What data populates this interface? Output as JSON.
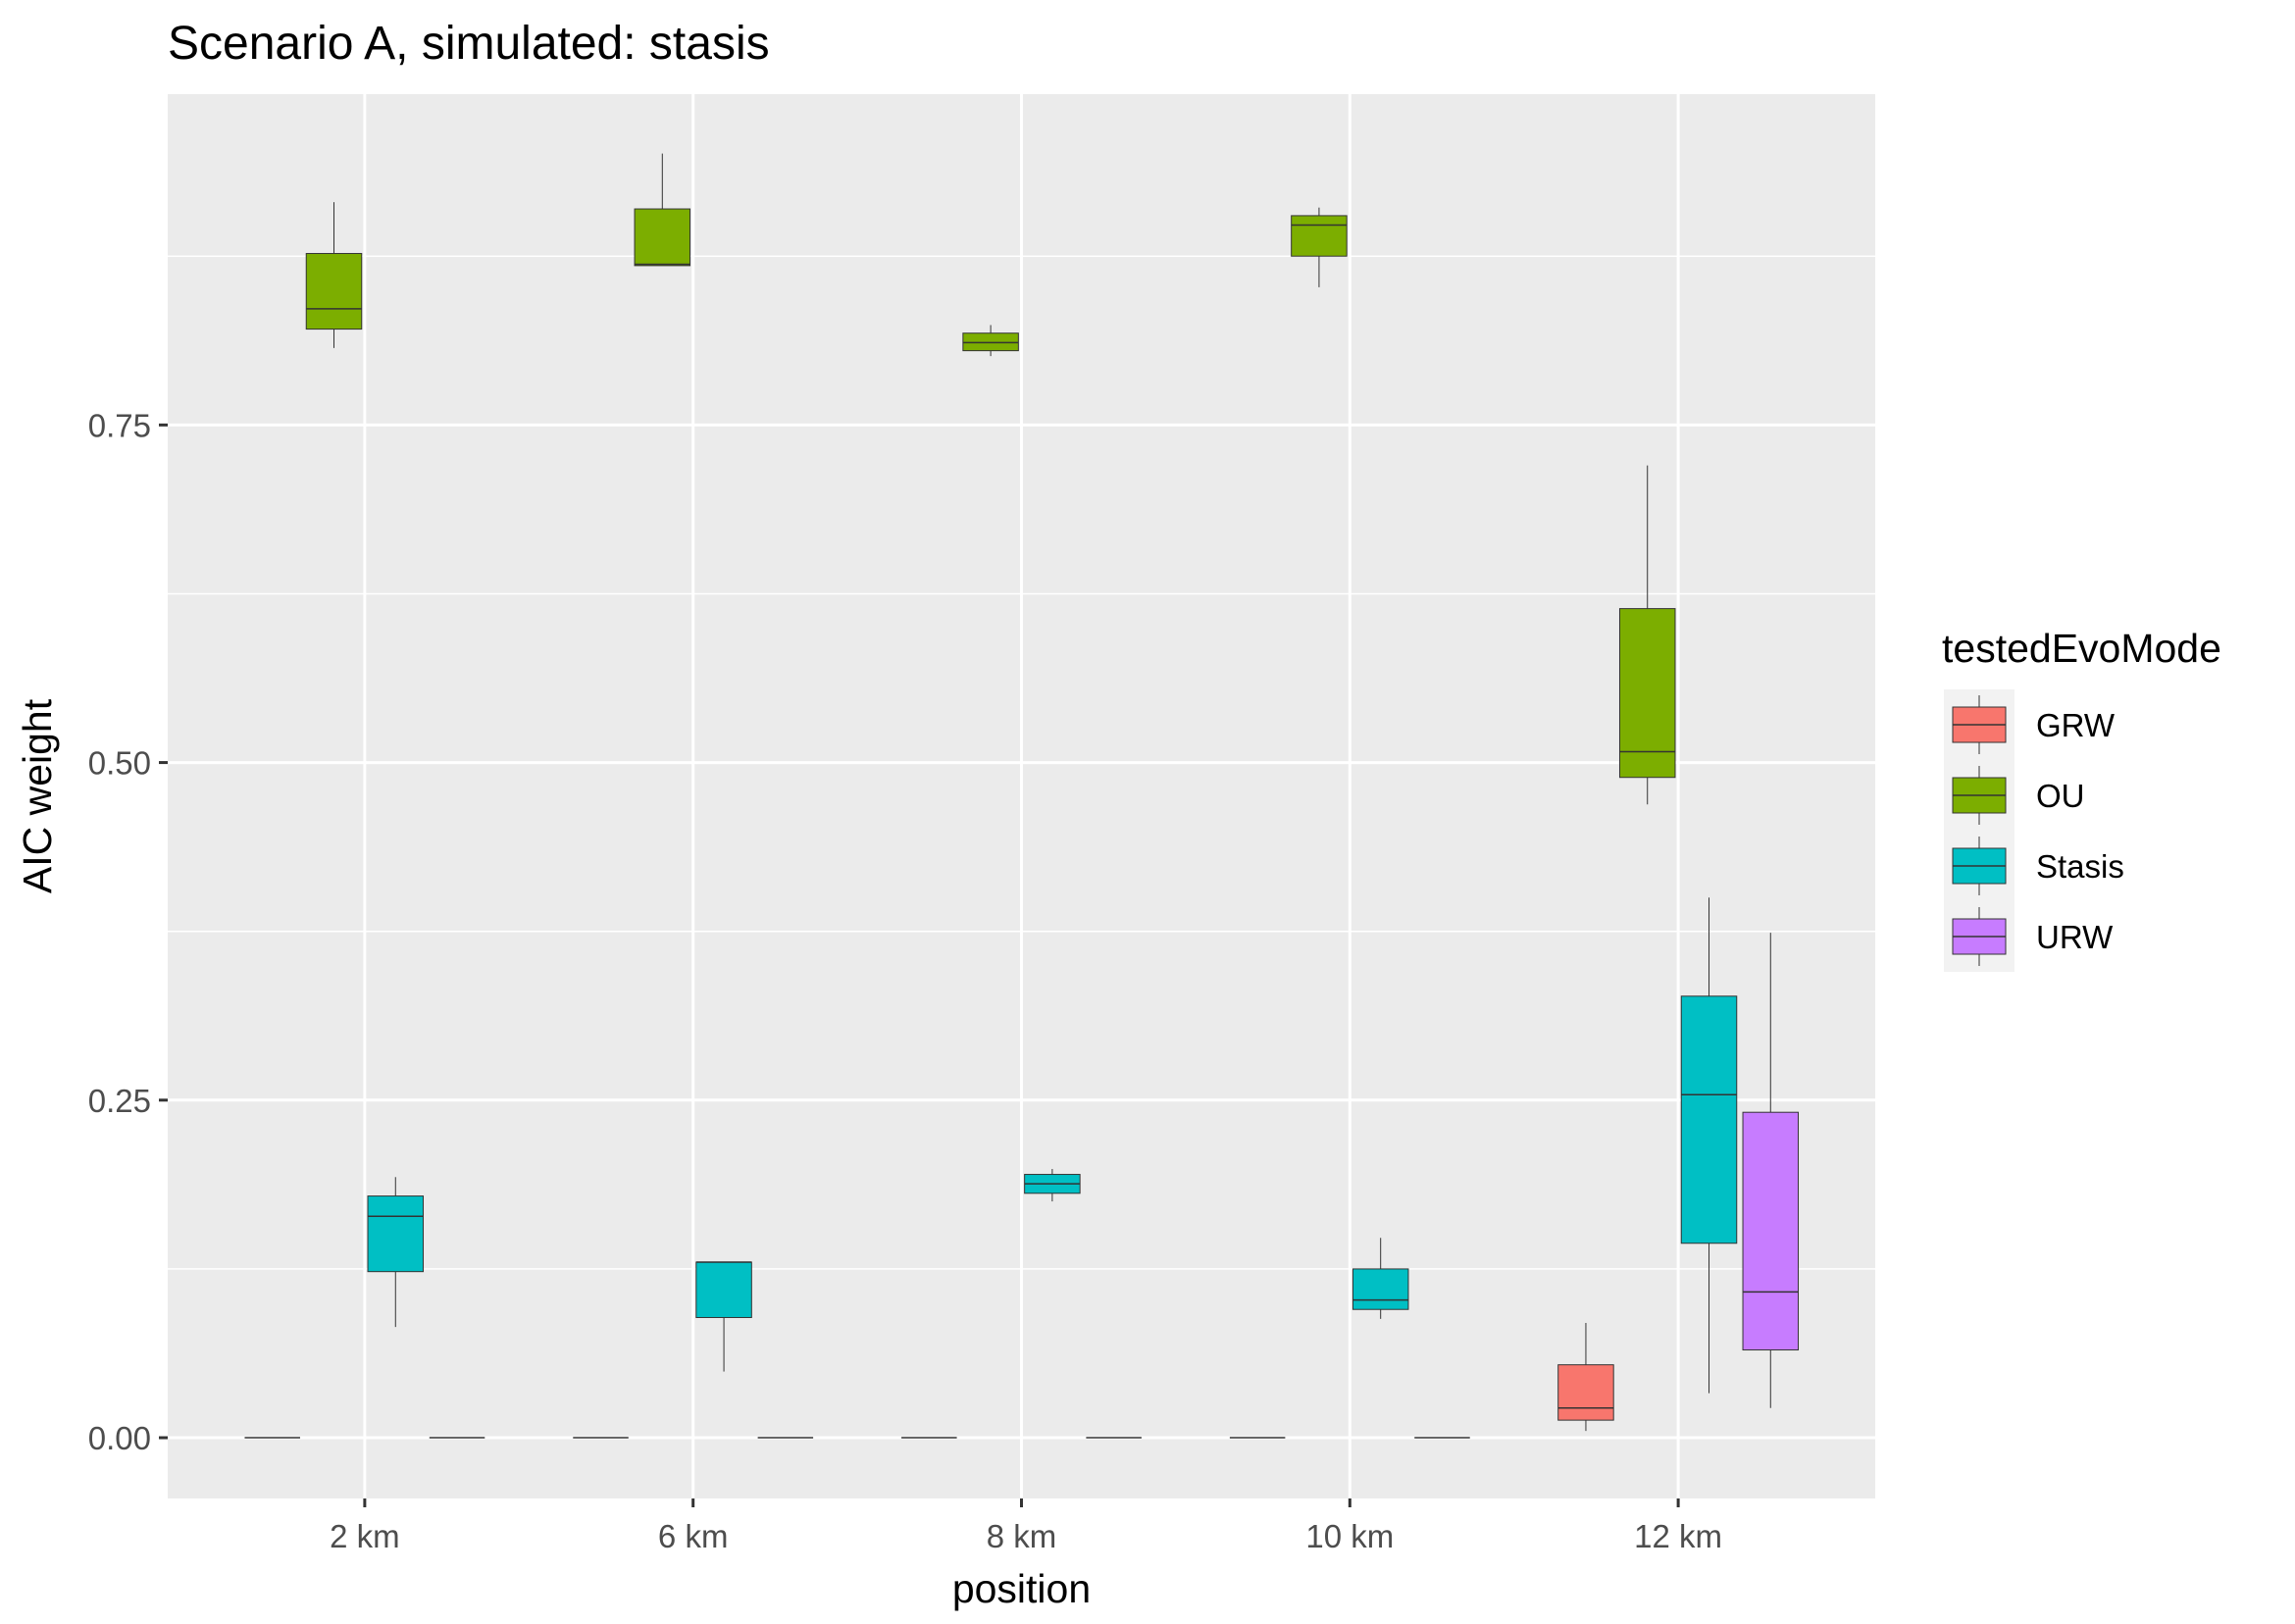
{
  "chart_data": {
    "type": "boxplot",
    "title": "Scenario A, simulated: stasis",
    "xlabel": "position",
    "ylabel": "AIC weight",
    "categories": [
      "2 km",
      "6 km",
      "8 km",
      "10 km",
      "12 km"
    ],
    "ylim": [
      -0.045,
      0.995
    ],
    "yticks": [
      0.0,
      0.25,
      0.5,
      0.75
    ],
    "ytick_labels": [
      "0.00",
      "0.25",
      "0.50",
      "0.75"
    ],
    "legend": {
      "title": "testedEvoMode",
      "placement": "right",
      "entries": [
        "GRW",
        "OU",
        "Stasis",
        "URW"
      ]
    },
    "colors": {
      "GRW": "#F8766D",
      "OU": "#7CAE00",
      "Stasis": "#00BFC4",
      "URW": "#C77CFF",
      "panel": "#EBEBEB",
      "grid": "#FFFFFF"
    },
    "series": [
      {
        "name": "GRW",
        "boxes": [
          {
            "category": "2 km",
            "whisker_low": 0.0,
            "q1": 0.0,
            "median": 0.0,
            "q3": 0.0,
            "whisker_high": 0.0
          },
          {
            "category": "6 km",
            "whisker_low": 0.0,
            "q1": 0.0,
            "median": 0.0,
            "q3": 0.0,
            "whisker_high": 0.0
          },
          {
            "category": "8 km",
            "whisker_low": 0.0,
            "q1": 0.0,
            "median": 0.0,
            "q3": 0.0,
            "whisker_high": 0.0
          },
          {
            "category": "10 km",
            "whisker_low": 0.0,
            "q1": 0.0,
            "median": 0.0,
            "q3": 0.0,
            "whisker_high": 0.0
          },
          {
            "category": "12 km",
            "whisker_low": 0.005,
            "q1": 0.013,
            "median": 0.022,
            "q3": 0.054,
            "whisker_high": 0.085
          }
        ]
      },
      {
        "name": "OU",
        "boxes": [
          {
            "category": "2 km",
            "whisker_low": 0.807,
            "q1": 0.821,
            "median": 0.836,
            "q3": 0.877,
            "whisker_high": 0.915
          },
          {
            "category": "6 km",
            "whisker_low": 0.868,
            "q1": 0.868,
            "median": 0.869,
            "q3": 0.91,
            "whisker_high": 0.951
          },
          {
            "category": "8 km",
            "whisker_low": 0.801,
            "q1": 0.805,
            "median": 0.811,
            "q3": 0.818,
            "whisker_high": 0.824
          },
          {
            "category": "10 km",
            "whisker_low": 0.852,
            "q1": 0.875,
            "median": 0.898,
            "q3": 0.905,
            "whisker_high": 0.911
          },
          {
            "category": "12 km",
            "whisker_low": 0.469,
            "q1": 0.489,
            "median": 0.508,
            "q3": 0.614,
            "whisker_high": 0.72
          }
        ]
      },
      {
        "name": "Stasis",
        "boxes": [
          {
            "category": "2 km",
            "whisker_low": 0.082,
            "q1": 0.123,
            "median": 0.164,
            "q3": 0.179,
            "whisker_high": 0.193
          },
          {
            "category": "6 km",
            "whisker_low": 0.049,
            "q1": 0.089,
            "median": 0.13,
            "q3": 0.13,
            "whisker_high": 0.13
          },
          {
            "category": "8 km",
            "whisker_low": 0.175,
            "q1": 0.181,
            "median": 0.188,
            "q3": 0.195,
            "whisker_high": 0.199
          },
          {
            "category": "10 km",
            "whisker_low": 0.088,
            "q1": 0.095,
            "median": 0.102,
            "q3": 0.125,
            "whisker_high": 0.148
          },
          {
            "category": "12 km",
            "whisker_low": 0.033,
            "q1": 0.144,
            "median": 0.254,
            "q3": 0.327,
            "whisker_high": 0.4
          }
        ]
      },
      {
        "name": "URW",
        "boxes": [
          {
            "category": "2 km",
            "whisker_low": 0.0,
            "q1": 0.0,
            "median": 0.0,
            "q3": 0.0,
            "whisker_high": 0.0
          },
          {
            "category": "6 km",
            "whisker_low": 0.0,
            "q1": 0.0,
            "median": 0.0,
            "q3": 0.0,
            "whisker_high": 0.0
          },
          {
            "category": "8 km",
            "whisker_low": 0.0,
            "q1": 0.0,
            "median": 0.0,
            "q3": 0.0,
            "whisker_high": 0.0
          },
          {
            "category": "10 km",
            "whisker_low": 0.0,
            "q1": 0.0,
            "median": 0.0,
            "q3": 0.0,
            "whisker_high": 0.0
          },
          {
            "category": "12 km",
            "whisker_low": 0.022,
            "q1": 0.065,
            "median": 0.108,
            "q3": 0.241,
            "whisker_high": 0.374
          }
        ]
      }
    ]
  }
}
